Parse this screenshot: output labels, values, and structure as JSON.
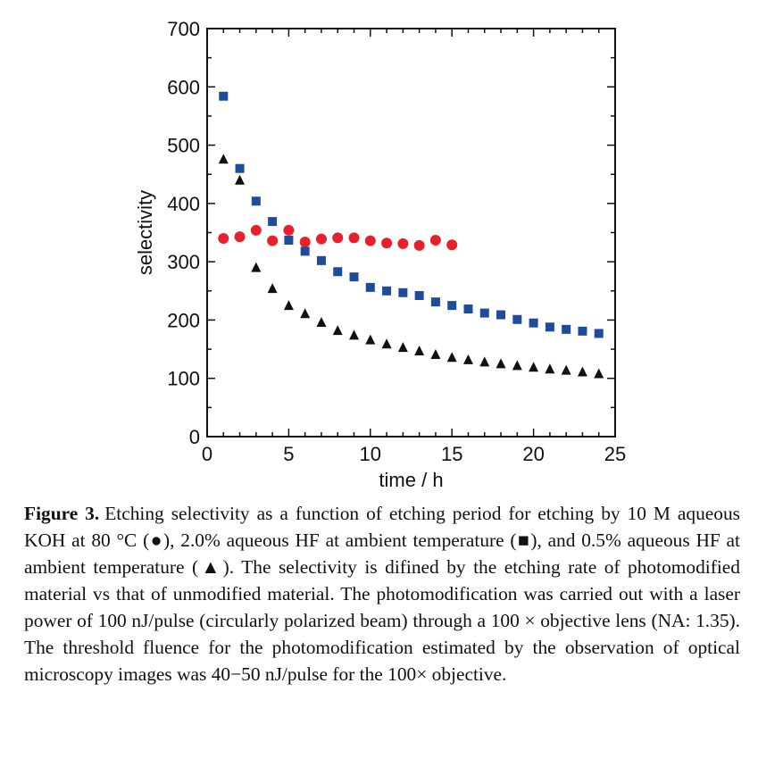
{
  "chart_data": {
    "type": "scatter",
    "xlabel": "time / h",
    "ylabel": "selectivity",
    "xlim": [
      0,
      25
    ],
    "ylim": [
      0,
      700
    ],
    "xticks": [
      0,
      5,
      10,
      15,
      20,
      25
    ],
    "yticks": [
      0,
      100,
      200,
      300,
      400,
      500,
      600,
      700
    ],
    "grid": false,
    "series": [
      {
        "marker": "circle",
        "color": "#e8202a",
        "x": [
          1,
          2,
          3,
          4,
          5,
          6,
          7,
          8,
          9,
          10,
          11,
          12,
          13,
          14,
          15
        ],
        "y": [
          340,
          343,
          354,
          336,
          354,
          334,
          339,
          341,
          341,
          336,
          332,
          331,
          328,
          337,
          329
        ]
      },
      {
        "marker": "square",
        "color": "#1f4b9c",
        "x": [
          1,
          2,
          3,
          4,
          5,
          6,
          7,
          8,
          9,
          10,
          11,
          12,
          13,
          14,
          15,
          16,
          17,
          18,
          19,
          20,
          21,
          22,
          23,
          24
        ],
        "y": [
          584,
          460,
          404,
          369,
          337,
          318,
          302,
          283,
          274,
          256,
          250,
          247,
          242,
          231,
          225,
          219,
          212,
          209,
          201,
          195,
          188,
          184,
          181,
          177
        ]
      },
      {
        "marker": "triangle",
        "color": "#111111",
        "x": [
          1,
          2,
          3,
          4,
          5,
          6,
          7,
          8,
          9,
          10,
          11,
          12,
          13,
          14,
          15,
          16,
          17,
          18,
          19,
          20,
          21,
          22,
          23,
          24
        ],
        "y": [
          476,
          440,
          290,
          254,
          225,
          211,
          196,
          182,
          174,
          166,
          159,
          153,
          147,
          141,
          136,
          132,
          128,
          125,
          122,
          119,
          116,
          114,
          111,
          108
        ]
      }
    ]
  },
  "caption": {
    "label": "Figure 3.",
    "text": "Etching selectivity as a function of etching period for etching by 10 M aqueous KOH at 80 °C (●), 2.0% aqueous HF at ambient temperature (■), and 0.5% aqueous HF at ambient temperature (▲). The selectivity is difined by the etching rate of photomodified material vs that of unmodified material. The photomodification was carried out with a laser power of 100 nJ/pulse (circularly polarized beam) through a 100 × objective lens (NA: 1.35). The threshold fluence for the photomodification estimated by the observation of optical microscopy images was 40−50 nJ/pulse for the 100× objective."
  }
}
